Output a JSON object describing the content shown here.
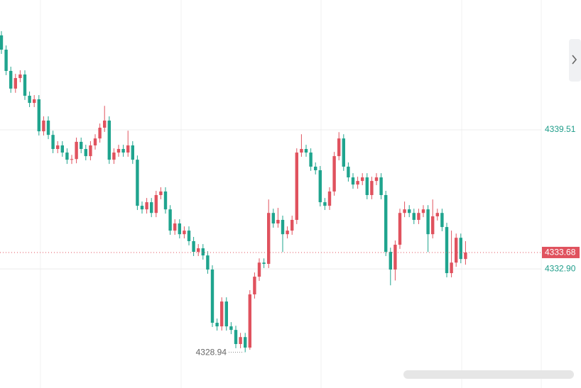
{
  "chart_data": {
    "type": "candlestick",
    "up_color": "#e0525e",
    "down_color": "#1fa48e",
    "ylim": [
      4327.24,
      4345.68
    ],
    "yticks": [
      4339.51,
      {
        "value": 4332.9,
        "label": "4332.90"
      }
    ],
    "grid": true,
    "last_price": 4333.68,
    "low_marker": 4328.94,
    "open": [
      4344.0,
      4343.32,
      4342.31,
      4341.47,
      4341.97,
      4342.14,
      4341.13,
      4340.79,
      4340.96,
      4339.44,
      4339.95,
      4339.27,
      4338.6,
      4338.77,
      4338.43,
      4338.09,
      4338.12,
      4338.94,
      4338.6,
      4338.26,
      4338.77,
      4339.1,
      4339.61,
      4339.95,
      4338.09,
      4338.43,
      4338.6,
      4338.43,
      4338.77,
      4338.09,
      4335.9,
      4335.73,
      4336.07,
      4335.56,
      4336.41,
      4336.58,
      4335.73,
      4334.72,
      4335.06,
      4334.55,
      4334.72,
      4334.22,
      4333.71,
      4333.88,
      4333.54,
      4332.87,
      4330.34,
      4330.17,
      4331.35,
      4330.17,
      4330.0,
      4329.33,
      4329.66,
      4329.16,
      4331.69,
      4332.53,
      4333.2,
      4333.14,
      4335.56,
      4335.06,
      4335.23,
      4334.55,
      4334.72,
      4335.23,
      4338.43,
      4338.6,
      4338.43,
      4337.76,
      4337.59,
      4336.07,
      4335.9,
      4336.58,
      4338.26,
      4339.1,
      4337.76,
      4337.25,
      4336.91,
      4337.08,
      4337.25,
      4336.41,
      4337.08,
      4337.25,
      4336.41,
      4333.71,
      4332.87,
      4334.05,
      4335.56,
      4335.73,
      4335.56,
      4335.23,
      4335.56,
      4335.73,
      4334.55,
      4335.4,
      4335.56,
      4334.89,
      4332.7,
      4333.2,
      4334.38,
      4333.37
    ],
    "high": [
      4344.2,
      4343.52,
      4342.51,
      4342.17,
      4342.34,
      4342.34,
      4341.33,
      4341.16,
      4341.16,
      4340.15,
      4340.15,
      4339.47,
      4338.97,
      4338.97,
      4338.63,
      4338.32,
      4339.14,
      4339.14,
      4338.8,
      4338.97,
      4339.3,
      4339.81,
      4340.65,
      4340.15,
      4338.63,
      4338.8,
      4338.8,
      4339.47,
      4338.97,
      4338.29,
      4336.1,
      4336.27,
      4336.27,
      4336.61,
      4336.78,
      4336.78,
      4335.93,
      4335.26,
      4335.26,
      4334.92,
      4334.92,
      4334.42,
      4334.08,
      4334.08,
      4333.74,
      4333.07,
      4330.54,
      4331.55,
      4331.55,
      4330.37,
      4330.2,
      4329.86,
      4329.86,
      4331.89,
      4332.73,
      4333.4,
      4333.4,
      4336.2,
      4335.76,
      4335.8,
      4335.43,
      4334.92,
      4335.43,
      4338.63,
      4339.3,
      4338.8,
      4338.63,
      4337.96,
      4337.79,
      4336.27,
      4336.78,
      4338.46,
      4339.4,
      4339.3,
      4337.96,
      4337.45,
      4337.28,
      4337.45,
      4337.45,
      4337.28,
      4337.45,
      4337.45,
      4336.61,
      4333.91,
      4334.25,
      4335.76,
      4336.1,
      4335.93,
      4335.76,
      4335.76,
      4335.93,
      4335.93,
      4336.2,
      4335.76,
      4335.76,
      4335.09,
      4334.72,
      4334.58,
      4334.58,
      4334.22
    ],
    "low": [
      4343.12,
      4342.11,
      4341.27,
      4341.27,
      4341.77,
      4340.93,
      4340.59,
      4340.59,
      4339.24,
      4339.24,
      4339.07,
      4338.4,
      4338.4,
      4338.23,
      4337.89,
      4337.89,
      4337.92,
      4338.4,
      4338.06,
      4338.06,
      4338.57,
      4338.9,
      4339.41,
      4337.89,
      4337.89,
      4338.23,
      4338.23,
      4338.23,
      4337.89,
      4335.7,
      4335.53,
      4335.53,
      4335.36,
      4335.36,
      4336.21,
      4335.53,
      4334.52,
      4334.52,
      4334.35,
      4334.35,
      4334.02,
      4333.51,
      4333.51,
      4333.34,
      4332.67,
      4330.14,
      4329.97,
      4329.97,
      4329.97,
      4329.8,
      4329.13,
      4329.13,
      4328.94,
      4329.06,
      4331.49,
      4332.33,
      4332.94,
      4332.94,
      4334.86,
      4334.86,
      4333.7,
      4334.35,
      4334.52,
      4335.03,
      4338.23,
      4338.23,
      4337.56,
      4337.39,
      4335.87,
      4335.7,
      4335.7,
      4336.38,
      4338.06,
      4337.56,
      4337.05,
      4336.71,
      4336.71,
      4336.88,
      4336.21,
      4336.21,
      4336.88,
      4336.21,
      4333.51,
      4332.12,
      4332.35,
      4333.85,
      4335.36,
      4335.36,
      4335.03,
      4335.03,
      4335.36,
      4333.7,
      4334.35,
      4335.2,
      4334.69,
      4332.5,
      4332.5,
      4333.0,
      4333.17,
      4333.1
    ],
    "close": [
      4343.32,
      4342.31,
      4341.47,
      4341.97,
      4342.14,
      4341.13,
      4340.79,
      4340.96,
      4339.44,
      4339.95,
      4339.27,
      4338.6,
      4338.77,
      4338.43,
      4338.09,
      4338.12,
      4338.94,
      4338.6,
      4338.26,
      4338.77,
      4339.1,
      4339.61,
      4339.95,
      4338.09,
      4338.43,
      4338.6,
      4338.43,
      4338.77,
      4338.09,
      4335.9,
      4335.73,
      4336.07,
      4335.56,
      4336.41,
      4336.58,
      4335.73,
      4334.72,
      4335.06,
      4334.55,
      4334.72,
      4334.22,
      4333.71,
      4333.88,
      4333.54,
      4332.87,
      4330.34,
      4330.17,
      4331.35,
      4330.17,
      4330.0,
      4329.33,
      4329.66,
      4329.16,
      4331.69,
      4332.53,
      4333.2,
      4333.14,
      4335.56,
      4335.06,
      4335.23,
      4334.55,
      4334.72,
      4335.23,
      4338.43,
      4338.6,
      4338.43,
      4337.76,
      4337.59,
      4336.07,
      4335.9,
      4336.58,
      4338.26,
      4339.1,
      4337.76,
      4337.25,
      4336.91,
      4337.08,
      4337.25,
      4336.41,
      4337.08,
      4337.25,
      4336.41,
      4333.71,
      4332.87,
      4334.05,
      4335.56,
      4335.73,
      4335.56,
      4335.23,
      4335.56,
      4335.73,
      4334.55,
      4335.4,
      4335.56,
      4334.89,
      4332.7,
      4333.2,
      4334.38,
      4333.37,
      4333.68
    ]
  }
}
